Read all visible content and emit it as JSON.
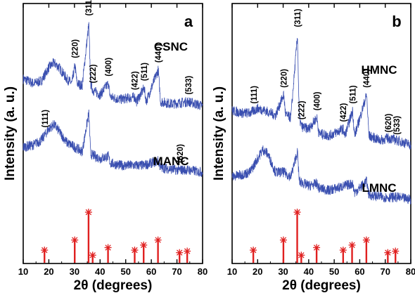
{
  "chart_data": [
    {
      "type": "line",
      "panel": "a",
      "xlabel": "2θ (degrees)",
      "ylabel": "Intensity (a. u.)",
      "xlim": [
        10,
        80
      ],
      "xticks": [
        10,
        20,
        30,
        40,
        50,
        60,
        70,
        80
      ],
      "series": [
        {
          "name": "CSNC",
          "color": "#3a4fb0",
          "points": [
            [
              10,
              0.74
            ],
            [
              14,
              0.72
            ],
            [
              17,
              0.73
            ],
            [
              20,
              0.79
            ],
            [
              22,
              0.81
            ],
            [
              24,
              0.79
            ],
            [
              27,
              0.74
            ],
            [
              29,
              0.72
            ],
            [
              30.2,
              0.8
            ],
            [
              31,
              0.72
            ],
            [
              33,
              0.71
            ],
            [
              35.6,
              0.98
            ],
            [
              36.3,
              0.72
            ],
            [
              37.2,
              0.69
            ],
            [
              40,
              0.67
            ],
            [
              43.2,
              0.72
            ],
            [
              44,
              0.66
            ],
            [
              48,
              0.65
            ],
            [
              53.5,
              0.66
            ],
            [
              54.2,
              0.64
            ],
            [
              57.2,
              0.7
            ],
            [
              58,
              0.64
            ],
            [
              62.7,
              0.78
            ],
            [
              63.6,
              0.64
            ],
            [
              68,
              0.63
            ],
            [
              74.5,
              0.64
            ],
            [
              80,
              0.62
            ]
          ]
        },
        {
          "name": "MANC",
          "color": "#3a4fb0",
          "points": [
            [
              10,
              0.44
            ],
            [
              14,
              0.45
            ],
            [
              17,
              0.47
            ],
            [
              20,
              0.52
            ],
            [
              22,
              0.54
            ],
            [
              24,
              0.51
            ],
            [
              27,
              0.46
            ],
            [
              30.2,
              0.44
            ],
            [
              33,
              0.42
            ],
            [
              35.6,
              0.59
            ],
            [
              36.3,
              0.41
            ],
            [
              40,
              0.39
            ],
            [
              43.2,
              0.4
            ],
            [
              44,
              0.37
            ],
            [
              48,
              0.36
            ],
            [
              57.2,
              0.36
            ],
            [
              62.7,
              0.38
            ],
            [
              63.6,
              0.35
            ],
            [
              70,
              0.34
            ],
            [
              74.5,
              0.34
            ],
            [
              80,
              0.33
            ]
          ]
        }
      ],
      "peak_labels": [
        {
          "text": "(311)",
          "x": 35.6
        },
        {
          "text": "(220)",
          "x": 30.2
        },
        {
          "text": "(222)",
          "x": 37.2
        },
        {
          "text": "(400)",
          "x": 43.2
        },
        {
          "text": "(422)",
          "x": 53.5
        },
        {
          "text": "(511)",
          "x": 57.2
        },
        {
          "text": "(440)",
          "x": 62.7
        },
        {
          "text": "(533)",
          "x": 74.5
        },
        {
          "text": "(111)",
          "x": 18.5
        },
        {
          "text": "(620)",
          "x": 71.2
        }
      ],
      "reference_peaks": [
        {
          "x": 18.3,
          "y": 0.25
        },
        {
          "x": 30.1,
          "y": 0.45
        },
        {
          "x": 35.5,
          "y": 1.0
        },
        {
          "x": 37.1,
          "y": 0.15
        },
        {
          "x": 43.1,
          "y": 0.3
        },
        {
          "x": 53.5,
          "y": 0.25
        },
        {
          "x": 57.0,
          "y": 0.35
        },
        {
          "x": 62.6,
          "y": 0.45
        },
        {
          "x": 71.0,
          "y": 0.2
        },
        {
          "x": 74.0,
          "y": 0.23
        }
      ]
    },
    {
      "type": "line",
      "panel": "b",
      "xlabel": "2θ (degrees)",
      "ylabel": "Intensity (a. u.)",
      "xlim": [
        10,
        80
      ],
      "xticks": [
        10,
        20,
        30,
        40,
        50,
        60,
        70,
        80
      ],
      "series": [
        {
          "name": "HMNC",
          "color": "#3a4fb0",
          "points": [
            [
              10,
              0.6
            ],
            [
              14,
              0.59
            ],
            [
              17,
              0.59
            ],
            [
              20,
              0.61
            ],
            [
              23,
              0.6
            ],
            [
              27,
              0.58
            ],
            [
              30.2,
              0.67
            ],
            [
              31,
              0.58
            ],
            [
              33,
              0.57
            ],
            [
              35.6,
              0.93
            ],
            [
              36.3,
              0.57
            ],
            [
              37.2,
              0.53
            ],
            [
              40,
              0.52
            ],
            [
              43.2,
              0.57
            ],
            [
              44,
              0.5
            ],
            [
              48,
              0.49
            ],
            [
              53.5,
              0.52
            ],
            [
              54.2,
              0.49
            ],
            [
              57.2,
              0.6
            ],
            [
              58,
              0.49
            ],
            [
              62.7,
              0.67
            ],
            [
              63.6,
              0.49
            ],
            [
              68,
              0.47
            ],
            [
              71.2,
              0.48
            ],
            [
              74.5,
              0.47
            ],
            [
              80,
              0.45
            ]
          ]
        },
        {
          "name": "LMNC",
          "color": "#3a4fb0",
          "points": [
            [
              10,
              0.31
            ],
            [
              14,
              0.32
            ],
            [
              17,
              0.33
            ],
            [
              20,
              0.39
            ],
            [
              22,
              0.43
            ],
            [
              24,
              0.41
            ],
            [
              27,
              0.33
            ],
            [
              30.2,
              0.33
            ],
            [
              33,
              0.31
            ],
            [
              35.6,
              0.42
            ],
            [
              36.3,
              0.29
            ],
            [
              40,
              0.27
            ],
            [
              43.2,
              0.28
            ],
            [
              44,
              0.26
            ],
            [
              48,
              0.25
            ],
            [
              57.2,
              0.28
            ],
            [
              58,
              0.24
            ],
            [
              62.7,
              0.29
            ],
            [
              63.6,
              0.23
            ],
            [
              70,
              0.22
            ],
            [
              74.5,
              0.22
            ],
            [
              80,
              0.21
            ]
          ]
        }
      ],
      "peak_labels": [
        {
          "text": "(311)",
          "x": 35.6
        },
        {
          "text": "(220)",
          "x": 30.2
        },
        {
          "text": "(111)",
          "x": 18.5
        },
        {
          "text": "(222)",
          "x": 37.2
        },
        {
          "text": "(400)",
          "x": 43.2
        },
        {
          "text": "(422)",
          "x": 53.5
        },
        {
          "text": "(511)",
          "x": 57.2
        },
        {
          "text": "(440)",
          "x": 62.7
        },
        {
          "text": "(620)",
          "x": 71.2
        },
        {
          "text": "(533)",
          "x": 74.5
        }
      ],
      "reference_peaks": [
        {
          "x": 18.3,
          "y": 0.25
        },
        {
          "x": 30.1,
          "y": 0.45
        },
        {
          "x": 35.5,
          "y": 1.0
        },
        {
          "x": 37.1,
          "y": 0.15
        },
        {
          "x": 43.1,
          "y": 0.3
        },
        {
          "x": 53.5,
          "y": 0.25
        },
        {
          "x": 57.0,
          "y": 0.35
        },
        {
          "x": 62.6,
          "y": 0.45
        },
        {
          "x": 71.0,
          "y": 0.2
        },
        {
          "x": 74.0,
          "y": 0.23
        }
      ]
    }
  ]
}
